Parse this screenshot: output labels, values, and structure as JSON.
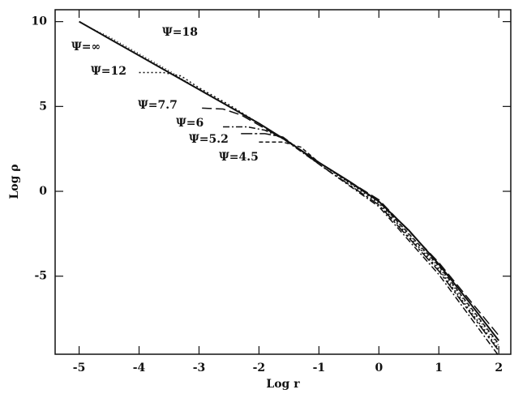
{
  "chart_data": {
    "type": "line",
    "x_label": "Log r",
    "y_label": "Log ρ",
    "xlim": [
      -5.4,
      2.2
    ],
    "ylim": [
      -9.6,
      10.7
    ],
    "xticks": [
      -5,
      -4,
      -3,
      -2,
      -1,
      0,
      1,
      2
    ],
    "yticks": [
      10,
      5,
      0,
      -5
    ],
    "series": [
      {
        "name": "Ψ=∞",
        "color": "#111",
        "dash": "none",
        "x": [
          -5,
          -4.5,
          -4,
          -3.5,
          -3,
          -2.5,
          -2,
          -1.5,
          -1,
          -0.5,
          0,
          0.5,
          1,
          1.5,
          2
        ],
        "values": [
          10,
          9.0,
          8.0,
          7.0,
          6.0,
          5.0,
          4.0,
          2.9,
          1.7,
          0.6,
          -0.6,
          -2.3,
          -4.3,
          -6.5,
          -8.8
        ]
      },
      {
        "name": "Ψ=18",
        "color": "#111",
        "dash": "1 3",
        "x": [
          -4.8,
          -4.5,
          -4,
          -3.5,
          -3,
          -2.5,
          -2,
          -1.5,
          -1,
          0,
          1,
          2
        ],
        "values": [
          9.6,
          9.1,
          8.1,
          7.1,
          6.0,
          5.0,
          4.0,
          2.9,
          1.7,
          -0.6,
          -4.5,
          -9.1
        ]
      },
      {
        "name": "Ψ=12",
        "color": "#111",
        "dash": "2 3",
        "x": [
          -4,
          -3.6,
          -3.3,
          -3,
          -2.5,
          -2,
          -1.5,
          -1,
          0,
          1,
          2
        ],
        "values": [
          7.0,
          7.0,
          6.8,
          6.1,
          5.1,
          4.0,
          2.9,
          1.7,
          -0.7,
          -4.6,
          -9.3
        ]
      },
      {
        "name": "Ψ=7.7",
        "color": "#111",
        "dash": "12 5",
        "x": [
          -2.95,
          -2.6,
          -2.3,
          -2,
          -1.5,
          -1,
          0,
          1,
          2
        ],
        "values": [
          4.9,
          4.85,
          4.5,
          3.9,
          2.9,
          1.7,
          -0.5,
          -4.2,
          -8.5
        ]
      },
      {
        "name": "Ψ=6",
        "color": "#111",
        "dash": "8 3 2 3",
        "x": [
          -2.6,
          -2.2,
          -1.9,
          -1.6,
          -1,
          0,
          1,
          2
        ],
        "values": [
          3.8,
          3.8,
          3.6,
          3.1,
          1.6,
          -0.9,
          -4.9,
          -9.7
        ]
      },
      {
        "name": "Ψ=5.2",
        "color": "#111",
        "dash": "14 3 3 3",
        "x": [
          -2.3,
          -1.9,
          -1.6,
          -1,
          0,
          1,
          2
        ],
        "values": [
          3.4,
          3.4,
          3.2,
          1.6,
          -0.8,
          -4.7,
          -9.4
        ]
      },
      {
        "name": "Ψ=4.5",
        "color": "#111",
        "dash": "5 3",
        "x": [
          -2.0,
          -1.6,
          -1.3,
          -1,
          0,
          1,
          2
        ],
        "values": [
          2.9,
          2.9,
          2.6,
          1.7,
          -0.6,
          -4.4,
          -9.0
        ]
      }
    ]
  }
}
